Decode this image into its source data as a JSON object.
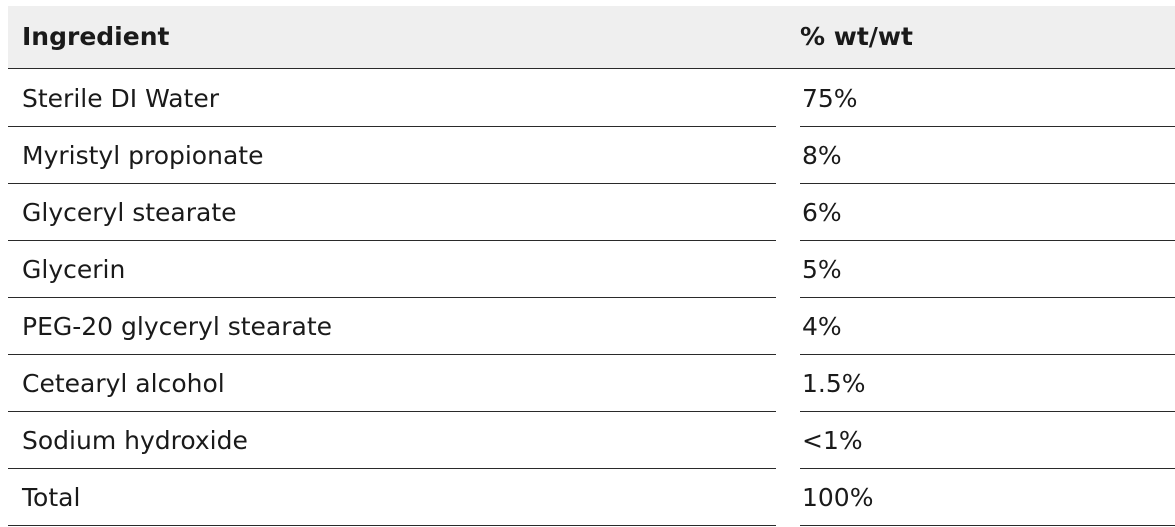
{
  "table": {
    "headers": [
      "Ingredient",
      "% wt/wt"
    ],
    "rows": [
      {
        "ingredient": "Sterile DI Water",
        "percent": "75%"
      },
      {
        "ingredient": "Myristyl propionate",
        "percent": "8%"
      },
      {
        "ingredient": "Glyceryl stearate",
        "percent": "6%"
      },
      {
        "ingredient": "Glycerin",
        "percent": "5%"
      },
      {
        "ingredient": "PEG-20 glyceryl stearate",
        "percent": "4%"
      },
      {
        "ingredient": "Cetearyl alcohol",
        "percent": "1.5%"
      },
      {
        "ingredient": "Sodium hydroxide",
        "percent": "<1%"
      },
      {
        "ingredient": "Total",
        "percent": "100%"
      }
    ]
  },
  "colors": {
    "header_background": "#efefef",
    "text": "#1a1a1a",
    "rule": "#2a2a2a"
  }
}
